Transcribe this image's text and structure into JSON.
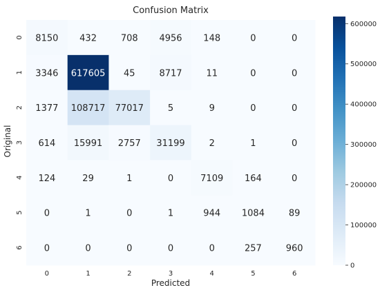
{
  "chart_data": {
    "type": "heatmap",
    "title": "Confusion Matrix",
    "xlabel": "Predicted",
    "ylabel": "Original",
    "x_categories": [
      "0",
      "1",
      "2",
      "3",
      "4",
      "5",
      "6"
    ],
    "y_categories": [
      "0",
      "1",
      "2",
      "3",
      "4",
      "5",
      "6"
    ],
    "values": [
      [
        8150,
        432,
        708,
        4956,
        148,
        0,
        0
      ],
      [
        3346,
        617605,
        45,
        8717,
        11,
        0,
        0
      ],
      [
        1377,
        108717,
        77017,
        5,
        9,
        0,
        0
      ],
      [
        614,
        15991,
        2757,
        31199,
        2,
        1,
        0
      ],
      [
        124,
        29,
        1,
        0,
        7109,
        164,
        0
      ],
      [
        0,
        1,
        0,
        1,
        944,
        1084,
        89
      ],
      [
        0,
        0,
        0,
        0,
        0,
        257,
        960
      ]
    ],
    "colormap": "Blues",
    "color_range": [
      0,
      617605
    ],
    "colorbar_ticks": [
      "0",
      "100000",
      "200000",
      "300000",
      "400000",
      "500000",
      "600000"
    ],
    "colorbar_tick_values": [
      0,
      100000,
      200000,
      300000,
      400000,
      500000,
      600000
    ],
    "colors": {
      "low": "#f7fbff",
      "high": "#08306b",
      "text_dark": "#262626",
      "text_light": "#ffffff"
    }
  }
}
